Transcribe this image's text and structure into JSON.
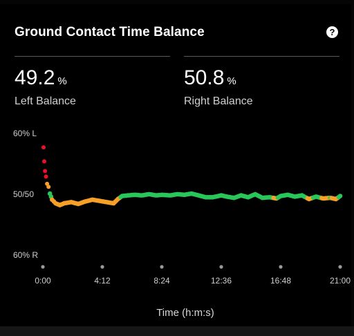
{
  "title": "Ground Contact Time Balance",
  "help_icon": "question-circle-icon",
  "stats": {
    "left": {
      "value": "49.2",
      "unit": "%",
      "label": "Left Balance"
    },
    "right": {
      "value": "50.8",
      "unit": "%",
      "label": "Right Balance"
    }
  },
  "colors": {
    "background": "#000000",
    "red": "#e8132b",
    "orange": "#f7a028",
    "green": "#29c65a"
  },
  "chart_data": {
    "type": "scatter",
    "xlabel": "Time (h:m:s)",
    "x_ticks": [
      "0:00",
      "4:12",
      "8:24",
      "12:36",
      "16:48",
      "21:00"
    ],
    "x_tick_minutes": [
      0,
      4.2,
      8.4,
      12.6,
      16.8,
      21.0
    ],
    "xlim": [
      0,
      21.0
    ],
    "y_ticks": [
      "60% L",
      "50/50",
      "60% R"
    ],
    "ylim": [
      -10,
      10
    ],
    "grid": false,
    "color_zones": {
      "red": "more than 2.1% off balance",
      "orange": "0.7% to 2.1% right",
      "green": "within 0.7% of balance"
    },
    "series": [
      {
        "values": [
          [
            0.05,
            7.6
          ],
          [
            0.1,
            5.3
          ],
          [
            0.15,
            3.7
          ],
          [
            0.22,
            2.8
          ],
          [
            0.3,
            1.6
          ],
          [
            0.4,
            1.1
          ],
          [
            0.5,
            0.0
          ],
          [
            0.65,
            -1.0
          ],
          [
            0.9,
            -1.6
          ],
          [
            1.2,
            -1.9
          ],
          [
            1.5,
            -1.6
          ],
          [
            2.0,
            -1.4
          ],
          [
            2.5,
            -1.7
          ],
          [
            3.0,
            -1.3
          ],
          [
            3.5,
            -1.0
          ],
          [
            4.0,
            -1.2
          ],
          [
            4.5,
            -1.4
          ],
          [
            5.0,
            -1.6
          ],
          [
            5.3,
            -0.9
          ],
          [
            5.6,
            -0.4
          ],
          [
            6.0,
            -0.3
          ],
          [
            6.5,
            -0.2
          ],
          [
            7.0,
            -0.3
          ],
          [
            7.5,
            -0.1
          ],
          [
            8.0,
            -0.3
          ],
          [
            8.4,
            -0.2
          ],
          [
            9.0,
            -0.3
          ],
          [
            9.5,
            -0.1
          ],
          [
            10.0,
            -0.2
          ],
          [
            10.5,
            0.0
          ],
          [
            11.0,
            -0.3
          ],
          [
            11.5,
            -0.6
          ],
          [
            12.0,
            -0.6
          ],
          [
            12.6,
            -0.3
          ],
          [
            13.0,
            -0.5
          ],
          [
            13.5,
            -0.7
          ],
          [
            14.0,
            -0.3
          ],
          [
            14.5,
            -0.6
          ],
          [
            15.0,
            -0.1
          ],
          [
            15.5,
            -0.7
          ],
          [
            16.0,
            -0.6
          ],
          [
            16.5,
            -0.8
          ],
          [
            16.8,
            -0.4
          ],
          [
            17.3,
            -0.2
          ],
          [
            17.8,
            -0.5
          ],
          [
            18.3,
            -0.3
          ],
          [
            18.8,
            -0.9
          ],
          [
            19.3,
            -0.5
          ],
          [
            19.8,
            -0.8
          ],
          [
            20.3,
            -0.7
          ],
          [
            20.7,
            -0.9
          ],
          [
            21.0,
            -0.4
          ]
        ]
      }
    ]
  }
}
